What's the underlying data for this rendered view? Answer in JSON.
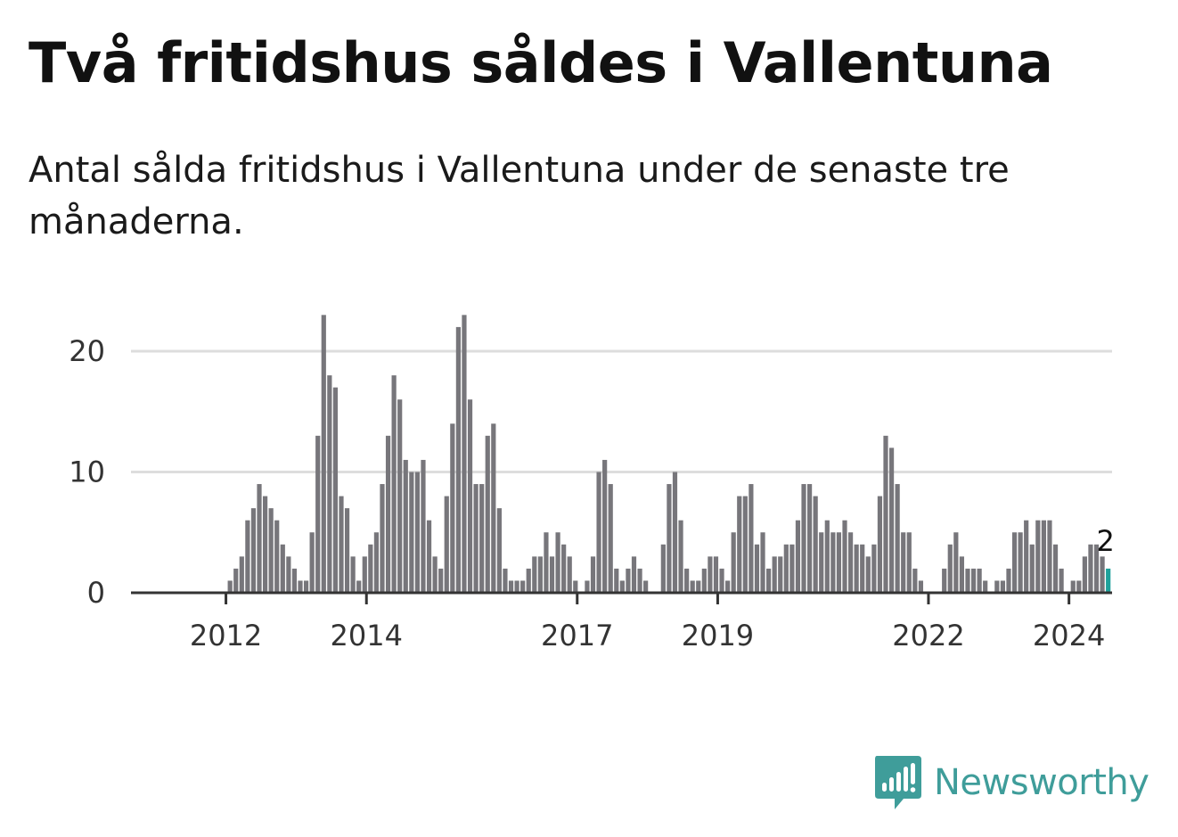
{
  "title": "Två fritidshus såldes i Vallentuna",
  "subtitle": "Antal sålda fritidshus i Vallentuna under de senaste tre månaderna.",
  "brand": {
    "name": "Newsworthy"
  },
  "colors": {
    "bar": "#77767b",
    "highlight": "#1ea19b",
    "grid": "#dddddd",
    "axis": "#333333",
    "brand": "#3f9d9a"
  },
  "chart_data": {
    "type": "bar",
    "title": "Två fritidshus såldes i Vallentuna",
    "xlabel": "",
    "ylabel": "",
    "ylim": [
      0,
      23
    ],
    "yticks": [
      0,
      10,
      20
    ],
    "start": "2011-05",
    "x_tick_labels": [
      "2012",
      "2014",
      "2017",
      "2019",
      "2022",
      "2024"
    ],
    "highlight_label": "2",
    "series": [
      {
        "name": "Antal sålda fritidshus",
        "values": [
          0,
          0,
          0,
          0,
          0,
          0,
          0,
          0,
          1,
          2,
          3,
          6,
          7,
          9,
          8,
          7,
          6,
          4,
          3,
          2,
          1,
          1,
          5,
          13,
          23,
          18,
          17,
          8,
          7,
          3,
          1,
          3,
          4,
          5,
          9,
          13,
          18,
          16,
          11,
          10,
          10,
          11,
          6,
          3,
          2,
          8,
          14,
          22,
          23,
          16,
          9,
          9,
          13,
          14,
          7,
          2,
          1,
          1,
          1,
          2,
          3,
          3,
          5,
          3,
          5,
          4,
          3,
          1,
          0,
          1,
          3,
          10,
          11,
          9,
          2,
          1,
          2,
          3,
          2,
          1,
          0,
          0,
          4,
          9,
          10,
          6,
          2,
          1,
          1,
          2,
          3,
          3,
          2,
          1,
          5,
          8,
          8,
          9,
          4,
          5,
          2,
          3,
          3,
          4,
          4,
          6,
          9,
          9,
          8,
          5,
          6,
          5,
          5,
          6,
          5,
          4,
          4,
          3,
          4,
          8,
          13,
          12,
          9,
          5,
          5,
          2,
          1,
          0,
          0,
          0,
          2,
          4,
          5,
          3,
          2,
          2,
          2,
          1,
          0,
          1,
          1,
          2,
          5,
          5,
          6,
          4,
          6,
          6,
          6,
          4,
          2,
          0,
          1,
          1,
          3,
          4,
          4,
          3,
          2
        ]
      }
    ]
  }
}
